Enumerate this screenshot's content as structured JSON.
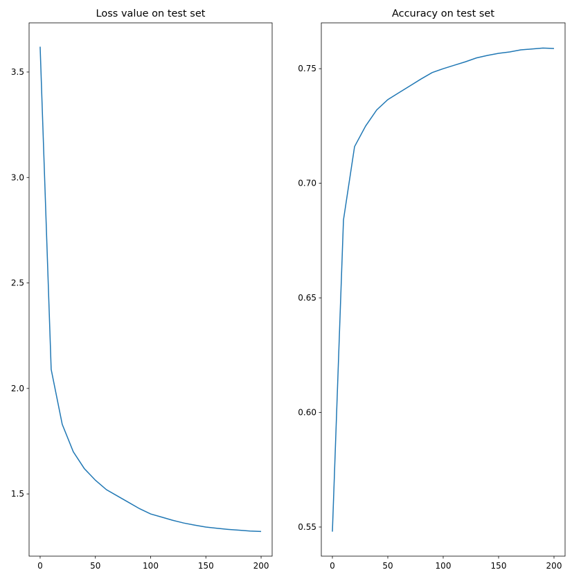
{
  "chart_data": [
    {
      "type": "line",
      "title": "Loss value on test set",
      "x": [
        0,
        10,
        20,
        30,
        40,
        50,
        60,
        70,
        80,
        90,
        100,
        110,
        120,
        130,
        140,
        150,
        160,
        170,
        180,
        190,
        200
      ],
      "series": [
        {
          "color": "#1f77b4",
          "values": [
            3.62,
            2.09,
            1.83,
            1.7,
            1.62,
            1.565,
            1.52,
            1.49,
            1.46,
            1.43,
            1.405,
            1.39,
            1.375,
            1.362,
            1.352,
            1.343,
            1.337,
            1.332,
            1.328,
            1.324,
            1.322
          ]
        }
      ],
      "xlim": [
        -10,
        210
      ],
      "xticks": [
        0,
        50,
        100,
        150,
        200
      ],
      "ylim": [
        1.205,
        3.733
      ],
      "yticks": [
        1.5,
        {
          "value": 2,
          "label": "2.0"
        },
        2.5,
        {
          "value": 3,
          "label": "3.0"
        },
        3.5
      ]
    },
    {
      "type": "line",
      "title": "Accuracy on test set",
      "x": [
        0,
        10,
        20,
        30,
        40,
        50,
        60,
        70,
        80,
        90,
        100,
        110,
        120,
        130,
        140,
        150,
        160,
        170,
        180,
        190,
        200
      ],
      "series": [
        {
          "color": "#1f77b4",
          "values": [
            0.548,
            0.684,
            0.716,
            0.725,
            0.732,
            0.7365,
            0.7395,
            0.7425,
            0.7455,
            0.7483,
            0.75,
            0.7515,
            0.753,
            0.7547,
            0.7558,
            0.7567,
            0.7573,
            0.7582,
            0.7586,
            0.759,
            0.7588
          ]
        }
      ],
      "xlim": [
        -10,
        210
      ],
      "xticks": [
        0,
        50,
        100,
        150,
        200
      ],
      "ylim": [
        0.5373,
        0.77
      ],
      "yticks": [
        0.55,
        {
          "value": 0.6,
          "label": "0.60"
        },
        0.65,
        {
          "value": 0.7,
          "label": "0.70"
        },
        0.75
      ]
    }
  ]
}
